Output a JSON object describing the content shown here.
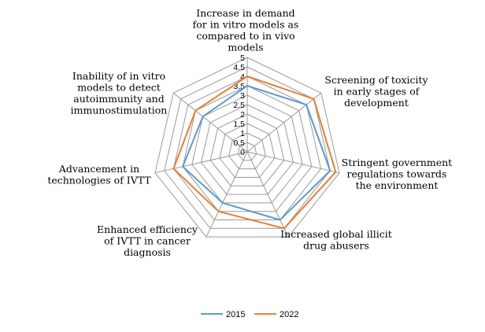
{
  "chart_data": {
    "type": "radar",
    "title": "",
    "categories": [
      "Increase in demand for in vitro models as compared to in vivo models",
      "Screening of toxicity in early stages of development",
      "Stringent government regulations towards the environment",
      "Increased global illicit drug abusers",
      "Enhanced efficiency of IVTT in cancer diagnosis",
      "Advancement in technologies of IVTT",
      "Inability of in vitro models to detect autoimmunity and immunostimulation"
    ],
    "category_label_lines": [
      [
        "Increase in demand",
        "for in vitro models as",
        "compared to in vivo",
        "models"
      ],
      [
        "Screening of toxicity",
        "in early stages of",
        "development"
      ],
      [
        "Stringent government",
        "regulations towards",
        "the environment"
      ],
      [
        "Increased global illicit",
        "drug abusers"
      ],
      [
        "Enhanced efficiency",
        "of IVTT in cancer",
        "diagnosis"
      ],
      [
        "Advancement in",
        "technologies of IVTT"
      ],
      [
        "Inability of in vitro",
        "models to detect",
        "autoimmunity and",
        "immunostimulation"
      ]
    ],
    "rlim": [
      0,
      5
    ],
    "ticks": [
      0,
      0.5,
      1,
      1.5,
      2,
      2.5,
      3,
      3.5,
      4,
      4.5,
      5
    ],
    "tick_labels": [
      "0",
      "0.5",
      "1",
      "1.5",
      "2",
      "2.5",
      "3",
      "3.5",
      "4",
      "4.5",
      "5"
    ],
    "series": [
      {
        "name": "2015",
        "color": "#5b9bd5",
        "values": [
          3.5,
          4.0,
          4.5,
          4.0,
          3.0,
          3.5,
          3.0
        ]
      },
      {
        "name": "2022",
        "color": "#ed7d31",
        "values": [
          4.0,
          4.5,
          4.8,
          4.5,
          3.5,
          4.0,
          3.5
        ]
      }
    ],
    "legend_position": "bottom",
    "grid": true
  }
}
